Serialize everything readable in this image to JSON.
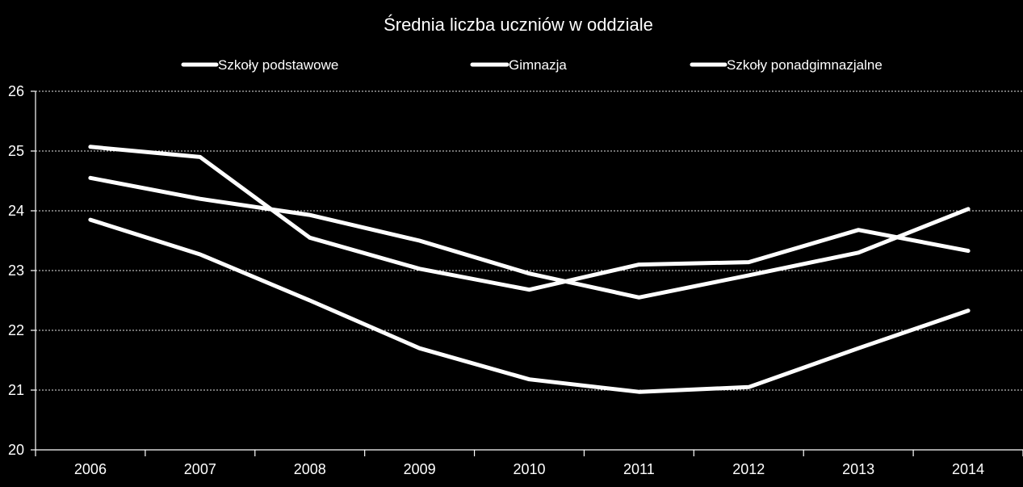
{
  "chart_data": {
    "type": "line",
    "title": "Średnia liczba uczniów w oddziale",
    "xlabel": "",
    "ylabel": "",
    "categories": [
      "2006",
      "2007",
      "2008",
      "2009",
      "2010",
      "2011",
      "2012",
      "2013",
      "2014"
    ],
    "ylim": [
      20,
      26
    ],
    "yticks": [
      20,
      21,
      22,
      23,
      24,
      25,
      26
    ],
    "grid": true,
    "legend_position": "top",
    "series": [
      {
        "name": "Szkoły podstawowe",
        "values": [
          25.07,
          24.9,
          23.55,
          23.03,
          22.68,
          23.1,
          23.14,
          23.68,
          23.33
        ]
      },
      {
        "name": "Gimnazja",
        "values": [
          24.55,
          24.2,
          23.93,
          23.5,
          22.95,
          22.55,
          22.92,
          23.3,
          24.03
        ]
      },
      {
        "name": "Szkoły ponadgimnazjalne",
        "values": [
          23.85,
          23.27,
          22.5,
          21.7,
          21.18,
          20.97,
          21.05,
          21.7,
          22.33
        ]
      }
    ],
    "colors": {
      "background": "#000000",
      "lines": "#ffffff",
      "text": "#ffffff"
    }
  }
}
